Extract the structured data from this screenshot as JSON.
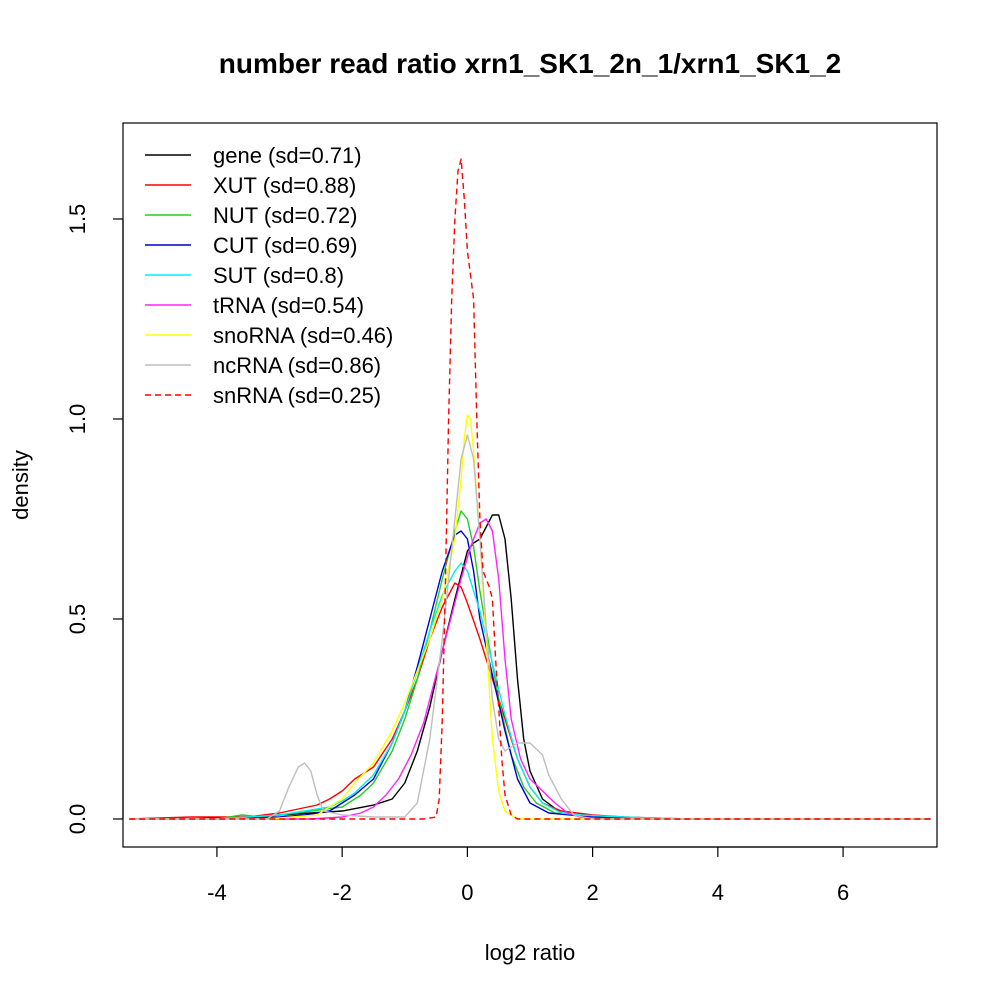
{
  "chart_data": {
    "type": "line",
    "title": "number read ratio xrn1_SK1_2n_1/xrn1_SK1_2",
    "xlabel": "log2 ratio",
    "ylabel": "density",
    "xlim": [
      -5.5,
      7.5
    ],
    "ylim": [
      -0.07,
      1.74
    ],
    "x_ticks": [
      -4,
      -2,
      0,
      2,
      4,
      6
    ],
    "y_ticks": [
      0.0,
      0.5,
      1.0,
      1.5
    ],
    "x_tick_labels": [
      "-4",
      "-2",
      "0",
      "2",
      "4",
      "6"
    ],
    "y_tick_labels": [
      "0.0",
      "0.5",
      "1.0",
      "1.5"
    ],
    "grid": false,
    "legend_position": "top-left",
    "series": [
      {
        "name": "gene (sd=0.71)",
        "color": "#000000",
        "dash": false,
        "points": [
          [
            -5.4,
            0
          ],
          [
            -4.5,
            0
          ],
          [
            -3.5,
            0.005
          ],
          [
            -3,
            0.01
          ],
          [
            -2.5,
            0.015
          ],
          [
            -2,
            0.02
          ],
          [
            -1.5,
            0.035
          ],
          [
            -1.2,
            0.05
          ],
          [
            -1,
            0.09
          ],
          [
            -0.8,
            0.17
          ],
          [
            -0.6,
            0.28
          ],
          [
            -0.4,
            0.42
          ],
          [
            -0.2,
            0.55
          ],
          [
            0,
            0.67
          ],
          [
            0.1,
            0.69
          ],
          [
            0.2,
            0.7
          ],
          [
            0.3,
            0.73
          ],
          [
            0.4,
            0.76
          ],
          [
            0.5,
            0.76
          ],
          [
            0.6,
            0.7
          ],
          [
            0.7,
            0.55
          ],
          [
            0.8,
            0.35
          ],
          [
            0.9,
            0.2
          ],
          [
            1.0,
            0.12
          ],
          [
            1.2,
            0.05
          ],
          [
            1.5,
            0.015
          ],
          [
            2,
            0.005
          ],
          [
            3,
            0
          ],
          [
            7.4,
            0
          ]
        ]
      },
      {
        "name": "XUT (sd=0.88)",
        "color": "#ff0000",
        "dash": false,
        "points": [
          [
            -5.4,
            0
          ],
          [
            -4.4,
            0.005
          ],
          [
            -3.5,
            0.005
          ],
          [
            -3,
            0.015
          ],
          [
            -2.7,
            0.025
          ],
          [
            -2.4,
            0.035
          ],
          [
            -2.2,
            0.05
          ],
          [
            -2,
            0.07
          ],
          [
            -1.8,
            0.1
          ],
          [
            -1.5,
            0.13
          ],
          [
            -1.2,
            0.2
          ],
          [
            -1,
            0.27
          ],
          [
            -0.8,
            0.35
          ],
          [
            -0.6,
            0.45
          ],
          [
            -0.4,
            0.53
          ],
          [
            -0.2,
            0.59
          ],
          [
            -0.1,
            0.58
          ],
          [
            0,
            0.54
          ],
          [
            0.2,
            0.45
          ],
          [
            0.4,
            0.35
          ],
          [
            0.6,
            0.25
          ],
          [
            0.8,
            0.15
          ],
          [
            1.0,
            0.08
          ],
          [
            1.2,
            0.04
          ],
          [
            1.5,
            0.02
          ],
          [
            2,
            0.01
          ],
          [
            2.5,
            0.005
          ],
          [
            3.5,
            0
          ],
          [
            7.4,
            0
          ]
        ]
      },
      {
        "name": "NUT (sd=0.72)",
        "color": "#22cc22",
        "dash": false,
        "points": [
          [
            -5.4,
            0
          ],
          [
            -4,
            0
          ],
          [
            -3.6,
            0.01
          ],
          [
            -3.3,
            0.005
          ],
          [
            -3,
            0.01
          ],
          [
            -2.5,
            0.02
          ],
          [
            -2,
            0.03
          ],
          [
            -1.7,
            0.06
          ],
          [
            -1.5,
            0.09
          ],
          [
            -1.2,
            0.17
          ],
          [
            -1,
            0.25
          ],
          [
            -0.8,
            0.35
          ],
          [
            -0.6,
            0.47
          ],
          [
            -0.4,
            0.6
          ],
          [
            -0.2,
            0.72
          ],
          [
            -0.1,
            0.77
          ],
          [
            0,
            0.75
          ],
          [
            0.1,
            0.68
          ],
          [
            0.2,
            0.57
          ],
          [
            0.35,
            0.43
          ],
          [
            0.5,
            0.3
          ],
          [
            0.7,
            0.16
          ],
          [
            0.9,
            0.08
          ],
          [
            1.1,
            0.04
          ],
          [
            1.4,
            0.015
          ],
          [
            2,
            0.005
          ],
          [
            3,
            0
          ],
          [
            7.4,
            0
          ]
        ]
      },
      {
        "name": "CUT (sd=0.69)",
        "color": "#0000cc",
        "dash": false,
        "points": [
          [
            -5.4,
            0
          ],
          [
            -4,
            0
          ],
          [
            -3,
            0.005
          ],
          [
            -2.6,
            0.01
          ],
          [
            -2.2,
            0.02
          ],
          [
            -2,
            0.04
          ],
          [
            -1.8,
            0.06
          ],
          [
            -1.5,
            0.1
          ],
          [
            -1.2,
            0.19
          ],
          [
            -1,
            0.27
          ],
          [
            -0.8,
            0.38
          ],
          [
            -0.6,
            0.5
          ],
          [
            -0.4,
            0.62
          ],
          [
            -0.2,
            0.71
          ],
          [
            -0.1,
            0.72
          ],
          [
            0,
            0.7
          ],
          [
            0.1,
            0.62
          ],
          [
            0.2,
            0.5
          ],
          [
            0.4,
            0.36
          ],
          [
            0.6,
            0.22
          ],
          [
            0.8,
            0.1
          ],
          [
            1.0,
            0.04
          ],
          [
            1.3,
            0.015
          ],
          [
            2,
            0.005
          ],
          [
            3,
            0
          ],
          [
            7.4,
            0
          ]
        ]
      },
      {
        "name": "SUT (sd=0.8)",
        "color": "#00eeee",
        "dash": false,
        "points": [
          [
            -5.4,
            0
          ],
          [
            -4,
            0
          ],
          [
            -3,
            0.01
          ],
          [
            -2.6,
            0.02
          ],
          [
            -2.2,
            0.03
          ],
          [
            -2,
            0.045
          ],
          [
            -1.8,
            0.065
          ],
          [
            -1.5,
            0.11
          ],
          [
            -1.2,
            0.19
          ],
          [
            -1,
            0.27
          ],
          [
            -0.8,
            0.37
          ],
          [
            -0.6,
            0.47
          ],
          [
            -0.4,
            0.56
          ],
          [
            -0.2,
            0.62
          ],
          [
            -0.1,
            0.64
          ],
          [
            0,
            0.62
          ],
          [
            0.2,
            0.52
          ],
          [
            0.4,
            0.39
          ],
          [
            0.6,
            0.26
          ],
          [
            0.8,
            0.15
          ],
          [
            1.0,
            0.08
          ],
          [
            1.2,
            0.04
          ],
          [
            1.5,
            0.015
          ],
          [
            1.8,
            0.01
          ],
          [
            2.5,
            0.005
          ],
          [
            3.5,
            0
          ],
          [
            7.4,
            0
          ]
        ]
      },
      {
        "name": "tRNA (sd=0.54)",
        "color": "#ff22ff",
        "dash": false,
        "points": [
          [
            -5.4,
            0
          ],
          [
            -2.5,
            0
          ],
          [
            -2,
            0.005
          ],
          [
            -1.7,
            0.015
          ],
          [
            -1.5,
            0.03
          ],
          [
            -1.3,
            0.06
          ],
          [
            -1.1,
            0.1
          ],
          [
            -0.9,
            0.16
          ],
          [
            -0.7,
            0.24
          ],
          [
            -0.5,
            0.36
          ],
          [
            -0.3,
            0.48
          ],
          [
            -0.1,
            0.6
          ],
          [
            0.05,
            0.68
          ],
          [
            0.2,
            0.74
          ],
          [
            0.3,
            0.75
          ],
          [
            0.4,
            0.72
          ],
          [
            0.5,
            0.6
          ],
          [
            0.6,
            0.4
          ],
          [
            0.7,
            0.25
          ],
          [
            0.85,
            0.15
          ],
          [
            1.0,
            0.1
          ],
          [
            1.2,
            0.07
          ],
          [
            1.4,
            0.04
          ],
          [
            1.6,
            0.015
          ],
          [
            1.8,
            0.005
          ],
          [
            2.2,
            0
          ],
          [
            7.4,
            0
          ]
        ]
      },
      {
        "name": "snoRNA (sd=0.46)",
        "color": "#ffff00",
        "dash": false,
        "points": [
          [
            -5.4,
            0
          ],
          [
            -3.2,
            0
          ],
          [
            -2.8,
            0.005
          ],
          [
            -2.4,
            0.01
          ],
          [
            -2.2,
            0.03
          ],
          [
            -2,
            0.05
          ],
          [
            -1.8,
            0.09
          ],
          [
            -1.5,
            0.14
          ],
          [
            -1.2,
            0.22
          ],
          [
            -1,
            0.29
          ],
          [
            -0.8,
            0.37
          ],
          [
            -0.6,
            0.45
          ],
          [
            -0.4,
            0.55
          ],
          [
            -0.2,
            0.7
          ],
          [
            -0.1,
            0.85
          ],
          [
            -0.05,
            0.95
          ],
          [
            0,
            1.01
          ],
          [
            0.05,
            1.0
          ],
          [
            0.1,
            0.92
          ],
          [
            0.2,
            0.7
          ],
          [
            0.3,
            0.45
          ],
          [
            0.4,
            0.2
          ],
          [
            0.5,
            0.07
          ],
          [
            0.6,
            0.02
          ],
          [
            0.8,
            0
          ],
          [
            7.4,
            0
          ]
        ]
      },
      {
        "name": "ncRNA (sd=0.86)",
        "color": "#bebebe",
        "dash": false,
        "points": [
          [
            -5.4,
            0
          ],
          [
            -3.2,
            0
          ],
          [
            -3,
            0.02
          ],
          [
            -2.85,
            0.08
          ],
          [
            -2.7,
            0.13
          ],
          [
            -2.6,
            0.14
          ],
          [
            -2.5,
            0.12
          ],
          [
            -2.4,
            0.06
          ],
          [
            -2.3,
            0.02
          ],
          [
            -2,
            0.01
          ],
          [
            -1.5,
            0.005
          ],
          [
            -1.0,
            0.005
          ],
          [
            -0.8,
            0.04
          ],
          [
            -0.6,
            0.2
          ],
          [
            -0.4,
            0.45
          ],
          [
            -0.2,
            0.75
          ],
          [
            -0.1,
            0.9
          ],
          [
            0,
            0.96
          ],
          [
            0.1,
            0.9
          ],
          [
            0.2,
            0.7
          ],
          [
            0.3,
            0.48
          ],
          [
            0.4,
            0.3
          ],
          [
            0.5,
            0.2
          ],
          [
            0.6,
            0.17
          ],
          [
            0.7,
            0.18
          ],
          [
            0.8,
            0.19
          ],
          [
            1.0,
            0.19
          ],
          [
            1.2,
            0.16
          ],
          [
            1.3,
            0.11
          ],
          [
            1.5,
            0.05
          ],
          [
            1.7,
            0.01
          ],
          [
            2,
            0
          ],
          [
            7.4,
            0
          ]
        ]
      },
      {
        "name": "snRNA (sd=0.25)",
        "color": "#ff0000",
        "dash": true,
        "points": [
          [
            -5.4,
            0
          ],
          [
            -0.7,
            0
          ],
          [
            -0.5,
            0.005
          ],
          [
            -0.45,
            0.05
          ],
          [
            -0.4,
            0.25
          ],
          [
            -0.35,
            0.6
          ],
          [
            -0.3,
            1.0
          ],
          [
            -0.25,
            1.3
          ],
          [
            -0.2,
            1.5
          ],
          [
            -0.15,
            1.62
          ],
          [
            -0.1,
            1.65
          ],
          [
            -0.05,
            1.55
          ],
          [
            0,
            1.42
          ],
          [
            0.05,
            1.36
          ],
          [
            0.1,
            1.3
          ],
          [
            0.15,
            1.0
          ],
          [
            0.2,
            0.75
          ],
          [
            0.25,
            0.62
          ],
          [
            0.3,
            0.6
          ],
          [
            0.35,
            0.58
          ],
          [
            0.4,
            0.55
          ],
          [
            0.45,
            0.4
          ],
          [
            0.5,
            0.28
          ],
          [
            0.55,
            0.15
          ],
          [
            0.6,
            0.06
          ],
          [
            0.7,
            0.01
          ],
          [
            0.8,
            0
          ],
          [
            7.4,
            0
          ]
        ]
      }
    ]
  }
}
